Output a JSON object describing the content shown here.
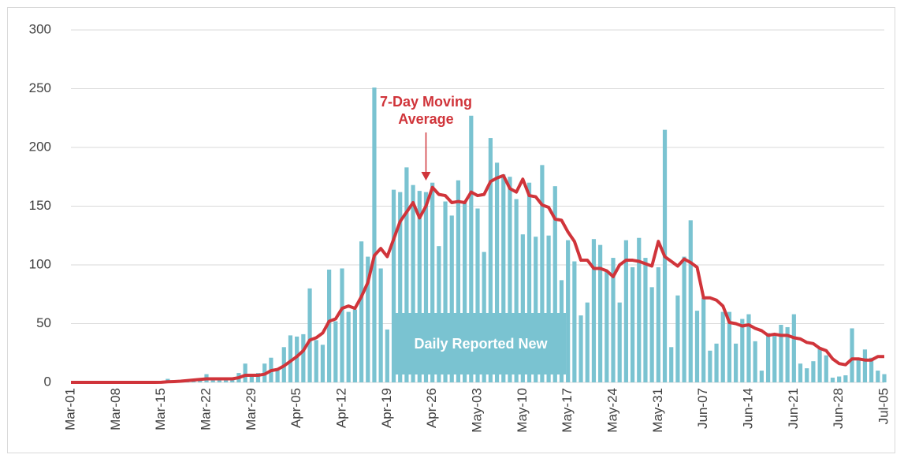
{
  "chart_data": {
    "type": "bar",
    "categories": [
      "Mar-01",
      null,
      null,
      null,
      null,
      null,
      null,
      "Mar-08",
      null,
      null,
      null,
      null,
      null,
      null,
      "Mar-15",
      null,
      null,
      null,
      null,
      null,
      null,
      "Mar-22",
      null,
      null,
      null,
      null,
      null,
      null,
      "Mar-29",
      null,
      null,
      null,
      null,
      null,
      null,
      "Apr-05",
      null,
      null,
      null,
      null,
      null,
      null,
      "Apr-12",
      null,
      null,
      null,
      null,
      null,
      null,
      "Apr-19",
      null,
      null,
      null,
      null,
      null,
      null,
      "Apr-26",
      null,
      null,
      null,
      null,
      null,
      null,
      "May-03",
      null,
      null,
      null,
      null,
      null,
      null,
      "May-10",
      null,
      null,
      null,
      null,
      null,
      null,
      "May-17",
      null,
      null,
      null,
      null,
      null,
      null,
      "May-24",
      null,
      null,
      null,
      null,
      null,
      null,
      "May-31",
      null,
      null,
      null,
      null,
      null,
      null,
      "Jun-07",
      null,
      null,
      null,
      null,
      null,
      null,
      "Jun-14",
      null,
      null,
      null,
      null,
      null,
      null,
      "Jun-21",
      null,
      null,
      null,
      null,
      null,
      null,
      "Jun-28",
      null,
      null,
      null,
      null,
      null,
      null,
      "Jul-05"
    ],
    "series": [
      {
        "name": "Daily Reported New",
        "type": "bar",
        "color": "#7ac3d1",
        "values": [
          0,
          0,
          0,
          0,
          0,
          0,
          0,
          0,
          0,
          0,
          0,
          0,
          0,
          0,
          1,
          3,
          1,
          2,
          2,
          1,
          3,
          7,
          3,
          3,
          3,
          3,
          8,
          16,
          5,
          8,
          16,
          21,
          12,
          30,
          40,
          39,
          41,
          80,
          36,
          32,
          96,
          52,
          97,
          60,
          62,
          120,
          107,
          251,
          97,
          45,
          164,
          162,
          183,
          168,
          163,
          162,
          170,
          116,
          154,
          142,
          172,
          153,
          227,
          148,
          111,
          208,
          187,
          177,
          175,
          156,
          126,
          170,
          124,
          185,
          125,
          167,
          87,
          121,
          103,
          57,
          68,
          122,
          117,
          94,
          106,
          68,
          121,
          98,
          123,
          106,
          81,
          98,
          215,
          30,
          74,
          107,
          138,
          61,
          72,
          27,
          33,
          60,
          60,
          33,
          54,
          58,
          35,
          10,
          42,
          40,
          49,
          47,
          58,
          16,
          12,
          18,
          30,
          23,
          4,
          5,
          6,
          46,
          21,
          28,
          21,
          10,
          7
        ]
      },
      {
        "name": "7-Day Moving Average",
        "type": "line",
        "color": "#d0343a",
        "values": [
          0,
          0,
          0,
          0,
          0,
          0,
          0,
          0,
          0,
          0,
          0,
          0,
          0,
          0,
          0.1,
          0.5,
          0.7,
          1,
          1.5,
          2,
          2.5,
          3,
          3,
          3,
          3,
          3,
          4,
          6,
          6,
          6,
          7,
          10,
          11,
          14,
          18,
          22,
          27,
          36,
          38,
          42,
          52,
          54,
          63,
          65,
          63,
          73,
          85,
          108,
          114,
          107,
          122,
          137,
          145,
          153,
          140,
          150,
          166,
          160,
          159,
          153,
          154,
          153,
          162,
          159,
          160,
          171,
          174,
          176,
          165,
          162,
          173,
          159,
          158,
          151,
          149,
          139,
          138,
          128,
          120,
          104,
          104,
          97,
          97,
          95,
          90,
          100,
          104,
          104,
          103,
          101,
          99,
          120,
          107,
          103,
          99,
          105,
          102,
          98,
          72,
          72,
          70,
          65,
          51,
          50,
          48,
          49,
          46,
          44,
          40,
          41,
          40,
          40,
          38,
          37,
          34,
          33,
          29,
          27,
          20,
          16,
          15,
          20,
          20,
          19,
          19,
          22,
          22
        ]
      }
    ],
    "ylim": [
      0,
      300
    ],
    "yticks": [
      0,
      50,
      100,
      150,
      200,
      250,
      300
    ],
    "grid": true
  }
}
